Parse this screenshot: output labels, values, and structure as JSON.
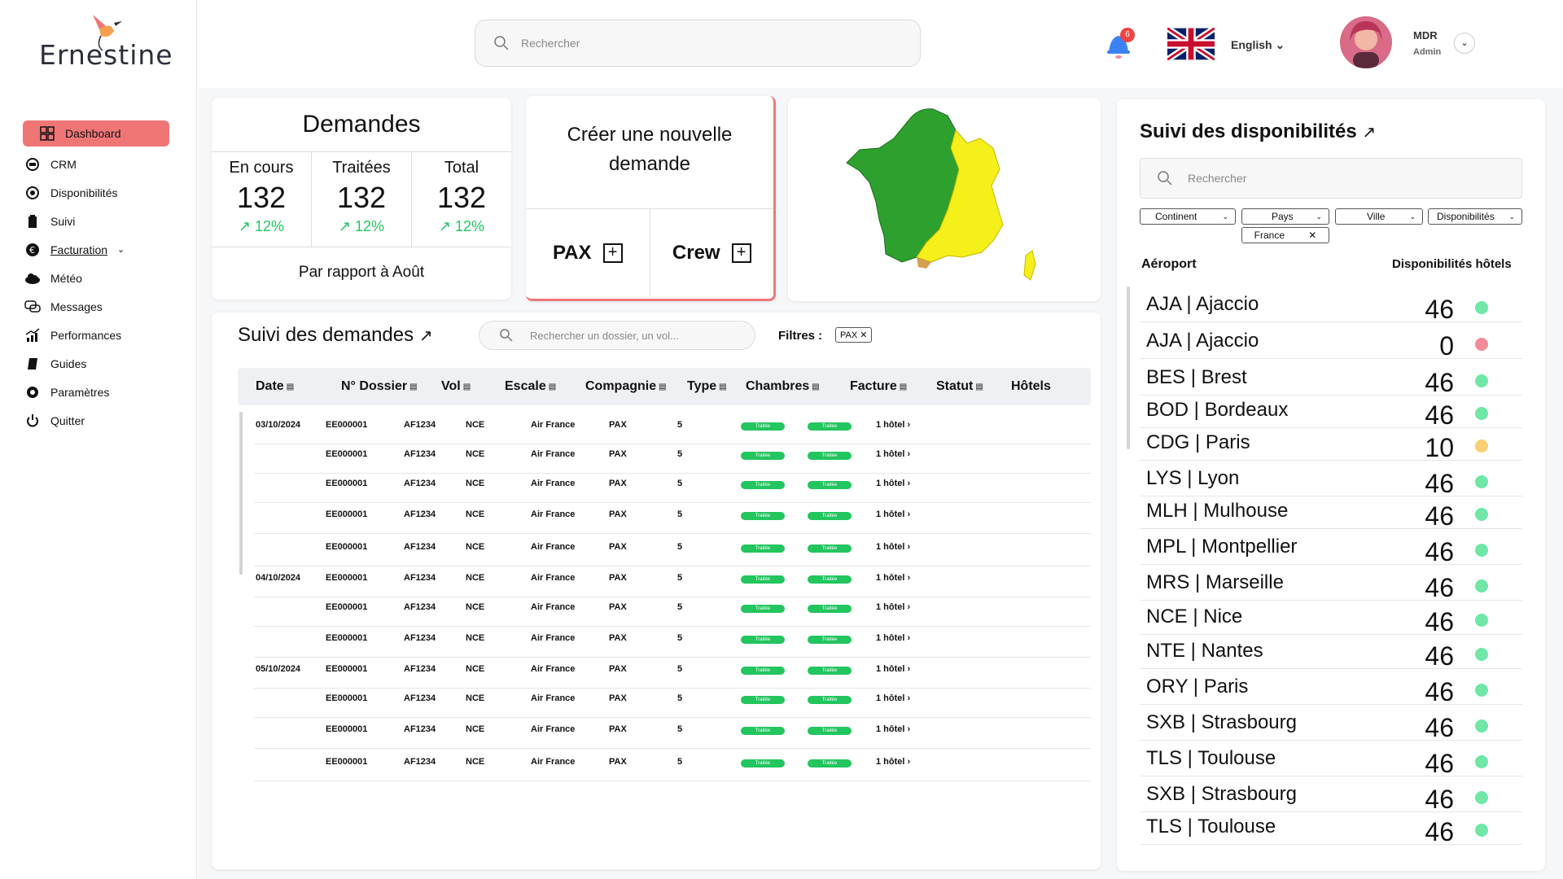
{
  "sidebar": {
    "brand": "Ernestine",
    "items": [
      {
        "label": "Dashboard"
      },
      {
        "label": "CRM"
      },
      {
        "label": "Disponibilités"
      },
      {
        "label": "Suivi"
      },
      {
        "label": "Facturation"
      },
      {
        "label": "Météo"
      },
      {
        "label": "Messages"
      },
      {
        "label": "Performances"
      },
      {
        "label": "Guides"
      },
      {
        "label": "Paramètres"
      },
      {
        "label": "Quitter"
      }
    ]
  },
  "topbar": {
    "search_placeholder": "Rechercher",
    "notif_count": "6",
    "language": "English",
    "user_name": "MDR",
    "user_role": "Admin"
  },
  "demandes": {
    "title": "Demandes",
    "stats": [
      {
        "label": "En cours",
        "value": "132",
        "pct": "12%"
      },
      {
        "label": "Traitées",
        "value": "132",
        "pct": "12%"
      },
      {
        "label": "Total",
        "value": "132",
        "pct": "12%"
      }
    ],
    "footer": "Par rapport à Août"
  },
  "create": {
    "title_line1": "Créer une nouvelle",
    "title_line2": "demande",
    "pax": "PAX",
    "crew": "Crew"
  },
  "suivi": {
    "title": "Suivi des demandes",
    "search_placeholder": "Rechercher un dossier, un vol...",
    "filters_label": "Filtres :",
    "filter_tag": "PAX",
    "columns": [
      "Date",
      "N° Dossier",
      "Vol",
      "Escale",
      "Compagnie",
      "Type",
      "Chambres",
      "Facture",
      "Statut",
      "Hôtels"
    ],
    "rows": [
      {
        "date": "03/10/2024",
        "dossier": "EE000001",
        "vol": "AF1234",
        "escale": "NCE",
        "compagnie": "Air France",
        "type": "PAX",
        "chambres": "5",
        "facture": "Traitée",
        "statut": "Traitée",
        "hotels": "1 hôtel"
      },
      {
        "date": "",
        "dossier": "EE000001",
        "vol": "AF1234",
        "escale": "NCE",
        "compagnie": "Air France",
        "type": "PAX",
        "chambres": "5",
        "facture": "Traitée",
        "statut": "Traitée",
        "hotels": "1 hôtel"
      },
      {
        "date": "",
        "dossier": "EE000001",
        "vol": "AF1234",
        "escale": "NCE",
        "compagnie": "Air France",
        "type": "PAX",
        "chambres": "5",
        "facture": "Traitée",
        "statut": "Traitée",
        "hotels": "1 hôtel"
      },
      {
        "date": "",
        "dossier": "EE000001",
        "vol": "AF1234",
        "escale": "NCE",
        "compagnie": "Air France",
        "type": "PAX",
        "chambres": "5",
        "facture": "Traitée",
        "statut": "Traitée",
        "hotels": "1 hôtel"
      },
      {
        "date": "",
        "dossier": "EE000001",
        "vol": "AF1234",
        "escale": "NCE",
        "compagnie": "Air France",
        "type": "PAX",
        "chambres": "5",
        "facture": "Traitée",
        "statut": "Traitée",
        "hotels": "1 hôtel"
      },
      {
        "date": "04/10/2024",
        "dossier": "EE000001",
        "vol": "AF1234",
        "escale": "NCE",
        "compagnie": "Air France",
        "type": "PAX",
        "chambres": "5",
        "facture": "Traitée",
        "statut": "Traitée",
        "hotels": "1 hôtel"
      },
      {
        "date": "",
        "dossier": "EE000001",
        "vol": "AF1234",
        "escale": "NCE",
        "compagnie": "Air France",
        "type": "PAX",
        "chambres": "5",
        "facture": "Traitée",
        "statut": "Traitée",
        "hotels": "1 hôtel"
      },
      {
        "date": "",
        "dossier": "EE000001",
        "vol": "AF1234",
        "escale": "NCE",
        "compagnie": "Air France",
        "type": "PAX",
        "chambres": "5",
        "facture": "Traitée",
        "statut": "Traitée",
        "hotels": "1 hôtel"
      },
      {
        "date": "05/10/2024",
        "dossier": "EE000001",
        "vol": "AF1234",
        "escale": "NCE",
        "compagnie": "Air France",
        "type": "PAX",
        "chambres": "5",
        "facture": "Traitée",
        "statut": "Traitée",
        "hotels": "1 hôtel"
      },
      {
        "date": "",
        "dossier": "EE000001",
        "vol": "AF1234",
        "escale": "NCE",
        "compagnie": "Air France",
        "type": "PAX",
        "chambres": "5",
        "facture": "Traitée",
        "statut": "Traitée",
        "hotels": "1 hôtel"
      },
      {
        "date": "",
        "dossier": "EE000001",
        "vol": "AF1234",
        "escale": "NCE",
        "compagnie": "Air France",
        "type": "PAX",
        "chambres": "5",
        "facture": "Traitée",
        "statut": "Traitée",
        "hotels": "1 hôtel"
      },
      {
        "date": "",
        "dossier": "EE000001",
        "vol": "AF1234",
        "escale": "NCE",
        "compagnie": "Air France",
        "type": "PAX",
        "chambres": "5",
        "facture": "Traitée",
        "statut": "Traitée",
        "hotels": "1 hôtel"
      }
    ]
  },
  "dispo": {
    "title": "Suivi des disponibilités",
    "search_placeholder": "Rechercher",
    "filters": [
      "Continent",
      "Pays",
      "Ville",
      "Disponibilités"
    ],
    "chip": "France",
    "col_airport": "Aéroport",
    "col_avail": "Disponibilités hôtels",
    "rows": [
      {
        "name": "AJA | Ajaccio",
        "value": "46",
        "status": "green"
      },
      {
        "name": "AJA | Ajaccio",
        "value": "0",
        "status": "red"
      },
      {
        "name": "BES | Brest",
        "value": "46",
        "status": "green"
      },
      {
        "name": "BOD | Bordeaux",
        "value": "46",
        "status": "green"
      },
      {
        "name": "CDG | Paris",
        "value": "10",
        "status": "orange"
      },
      {
        "name": "LYS | Lyon",
        "value": "46",
        "status": "green"
      },
      {
        "name": "MLH | Mulhouse",
        "value": "46",
        "status": "green"
      },
      {
        "name": "MPL | Montpellier",
        "value": "46",
        "status": "green"
      },
      {
        "name": "MRS | Marseille",
        "value": "46",
        "status": "green"
      },
      {
        "name": "NCE | Nice",
        "value": "46",
        "status": "green"
      },
      {
        "name": "NTE | Nantes",
        "value": "46",
        "status": "green"
      },
      {
        "name": "ORY | Paris",
        "value": "46",
        "status": "green"
      },
      {
        "name": "SXB | Strasbourg",
        "value": "46",
        "status": "green"
      },
      {
        "name": "TLS | Toulouse",
        "value": "46",
        "status": "green"
      },
      {
        "name": "SXB | Strasbourg",
        "value": "46",
        "status": "green"
      },
      {
        "name": "TLS | Toulouse",
        "value": "46",
        "status": "green"
      }
    ]
  },
  "colors": {
    "accent": "#f07676",
    "green": "#6ee7a7",
    "red": "#f48a96",
    "orange": "#fbcf73",
    "badge": "#22c55e",
    "map_green": "#2ea02e",
    "map_yellow": "#f5ef1a"
  }
}
